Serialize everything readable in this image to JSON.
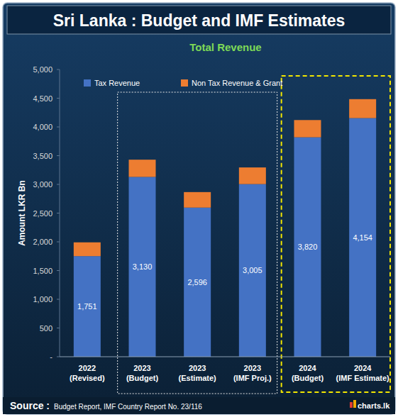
{
  "chart_data": {
    "type": "bar",
    "title": "Sri Lanka : Budget and IMF Estimates",
    "subtitle": "Total Revenue",
    "y_label": "Amount LKR Bn",
    "stacked": true,
    "legend": "top",
    "grid": false,
    "categories": [
      "2022 (Revised)",
      "2023 (Budget)",
      "2023 (Estimate)",
      "2023 (IMF Proj.)",
      "2024 (Budget)",
      "2024 (IMF Estimate)"
    ],
    "series": [
      {
        "name": "Tax Revenue",
        "color": "#4472c4",
        "values": [
          1751,
          3130,
          2596,
          3005,
          3820,
          4154
        ],
        "value_labels": [
          "1,751",
          "3,130",
          "2,596",
          "3,005",
          "3,820",
          "4,154"
        ],
        "data_labels": true
      },
      {
        "name": "Non Tax Revenue & Grant",
        "color": "#ed7d31",
        "values": [
          240,
          300,
          270,
          290,
          300,
          330
        ],
        "data_labels": false
      }
    ],
    "ylim": [
      0,
      5000
    ],
    "yticks": [
      {
        "value": 0,
        "label": "-"
      },
      500,
      {
        "value": 1000,
        "label": "1,000"
      },
      {
        "value": 1500,
        "label": "1,500"
      },
      {
        "value": 2000,
        "label": "2,000"
      },
      {
        "value": 2500,
        "label": "2,500"
      },
      {
        "value": 3000,
        "label": "3,000"
      },
      {
        "value": 3500,
        "label": "3,500"
      },
      {
        "value": 4000,
        "label": "4,000"
      },
      {
        "value": 4500,
        "label": "4,500"
      },
      {
        "value": 5000,
        "label": "5,000"
      }
    ],
    "source_label": "Source :",
    "source": "Budget Report, IMF Country Report No. 23/116",
    "brand": "charts.lk"
  }
}
